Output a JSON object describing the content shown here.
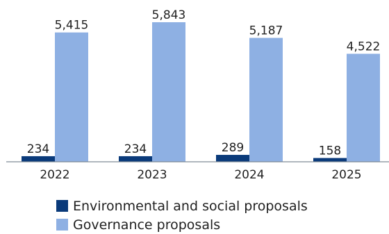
{
  "chart_data": {
    "type": "bar",
    "categories": [
      "2022",
      "2023",
      "2024",
      "2025"
    ],
    "series": [
      {
        "name": "Environmental and social proposals",
        "values": [
          234,
          234,
          289,
          158
        ],
        "labels": [
          "234",
          "234",
          "289",
          "158"
        ],
        "color": "#0a3a7a"
      },
      {
        "name": "Governance proposals",
        "values": [
          5415,
          5843,
          5187,
          4522
        ],
        "labels": [
          "5,415",
          "5,843",
          "5,187",
          "4,522"
        ],
        "color": "#8eb0e3"
      }
    ],
    "title": "",
    "xlabel": "",
    "ylabel": "",
    "ylim": [
      0,
      5843
    ],
    "grid": false,
    "legend_position": "bottom-left",
    "axis_color": "#7f8a96"
  }
}
